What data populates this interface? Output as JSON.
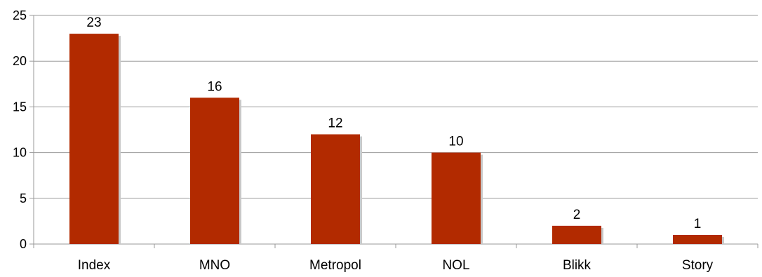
{
  "chart_data": {
    "type": "bar",
    "categories": [
      "Index",
      "MNO",
      "Metropol",
      "NOL",
      "Blikk",
      "Story"
    ],
    "values": [
      23,
      16,
      12,
      10,
      2,
      1
    ],
    "data_labels": [
      "23",
      "16",
      "12",
      "10",
      "2",
      "1"
    ],
    "title": "",
    "xlabel": "",
    "ylabel": "",
    "ylim": [
      0,
      25
    ],
    "yticks": [
      0,
      5,
      10,
      15,
      20,
      25
    ],
    "ytick_labels": [
      "0",
      "5",
      "10",
      "15",
      "20",
      "25"
    ],
    "grid": true,
    "legend": "none",
    "bar_color": "#b22a00",
    "shadow_color": "#c8c8c8",
    "grid_color": "#999999"
  }
}
